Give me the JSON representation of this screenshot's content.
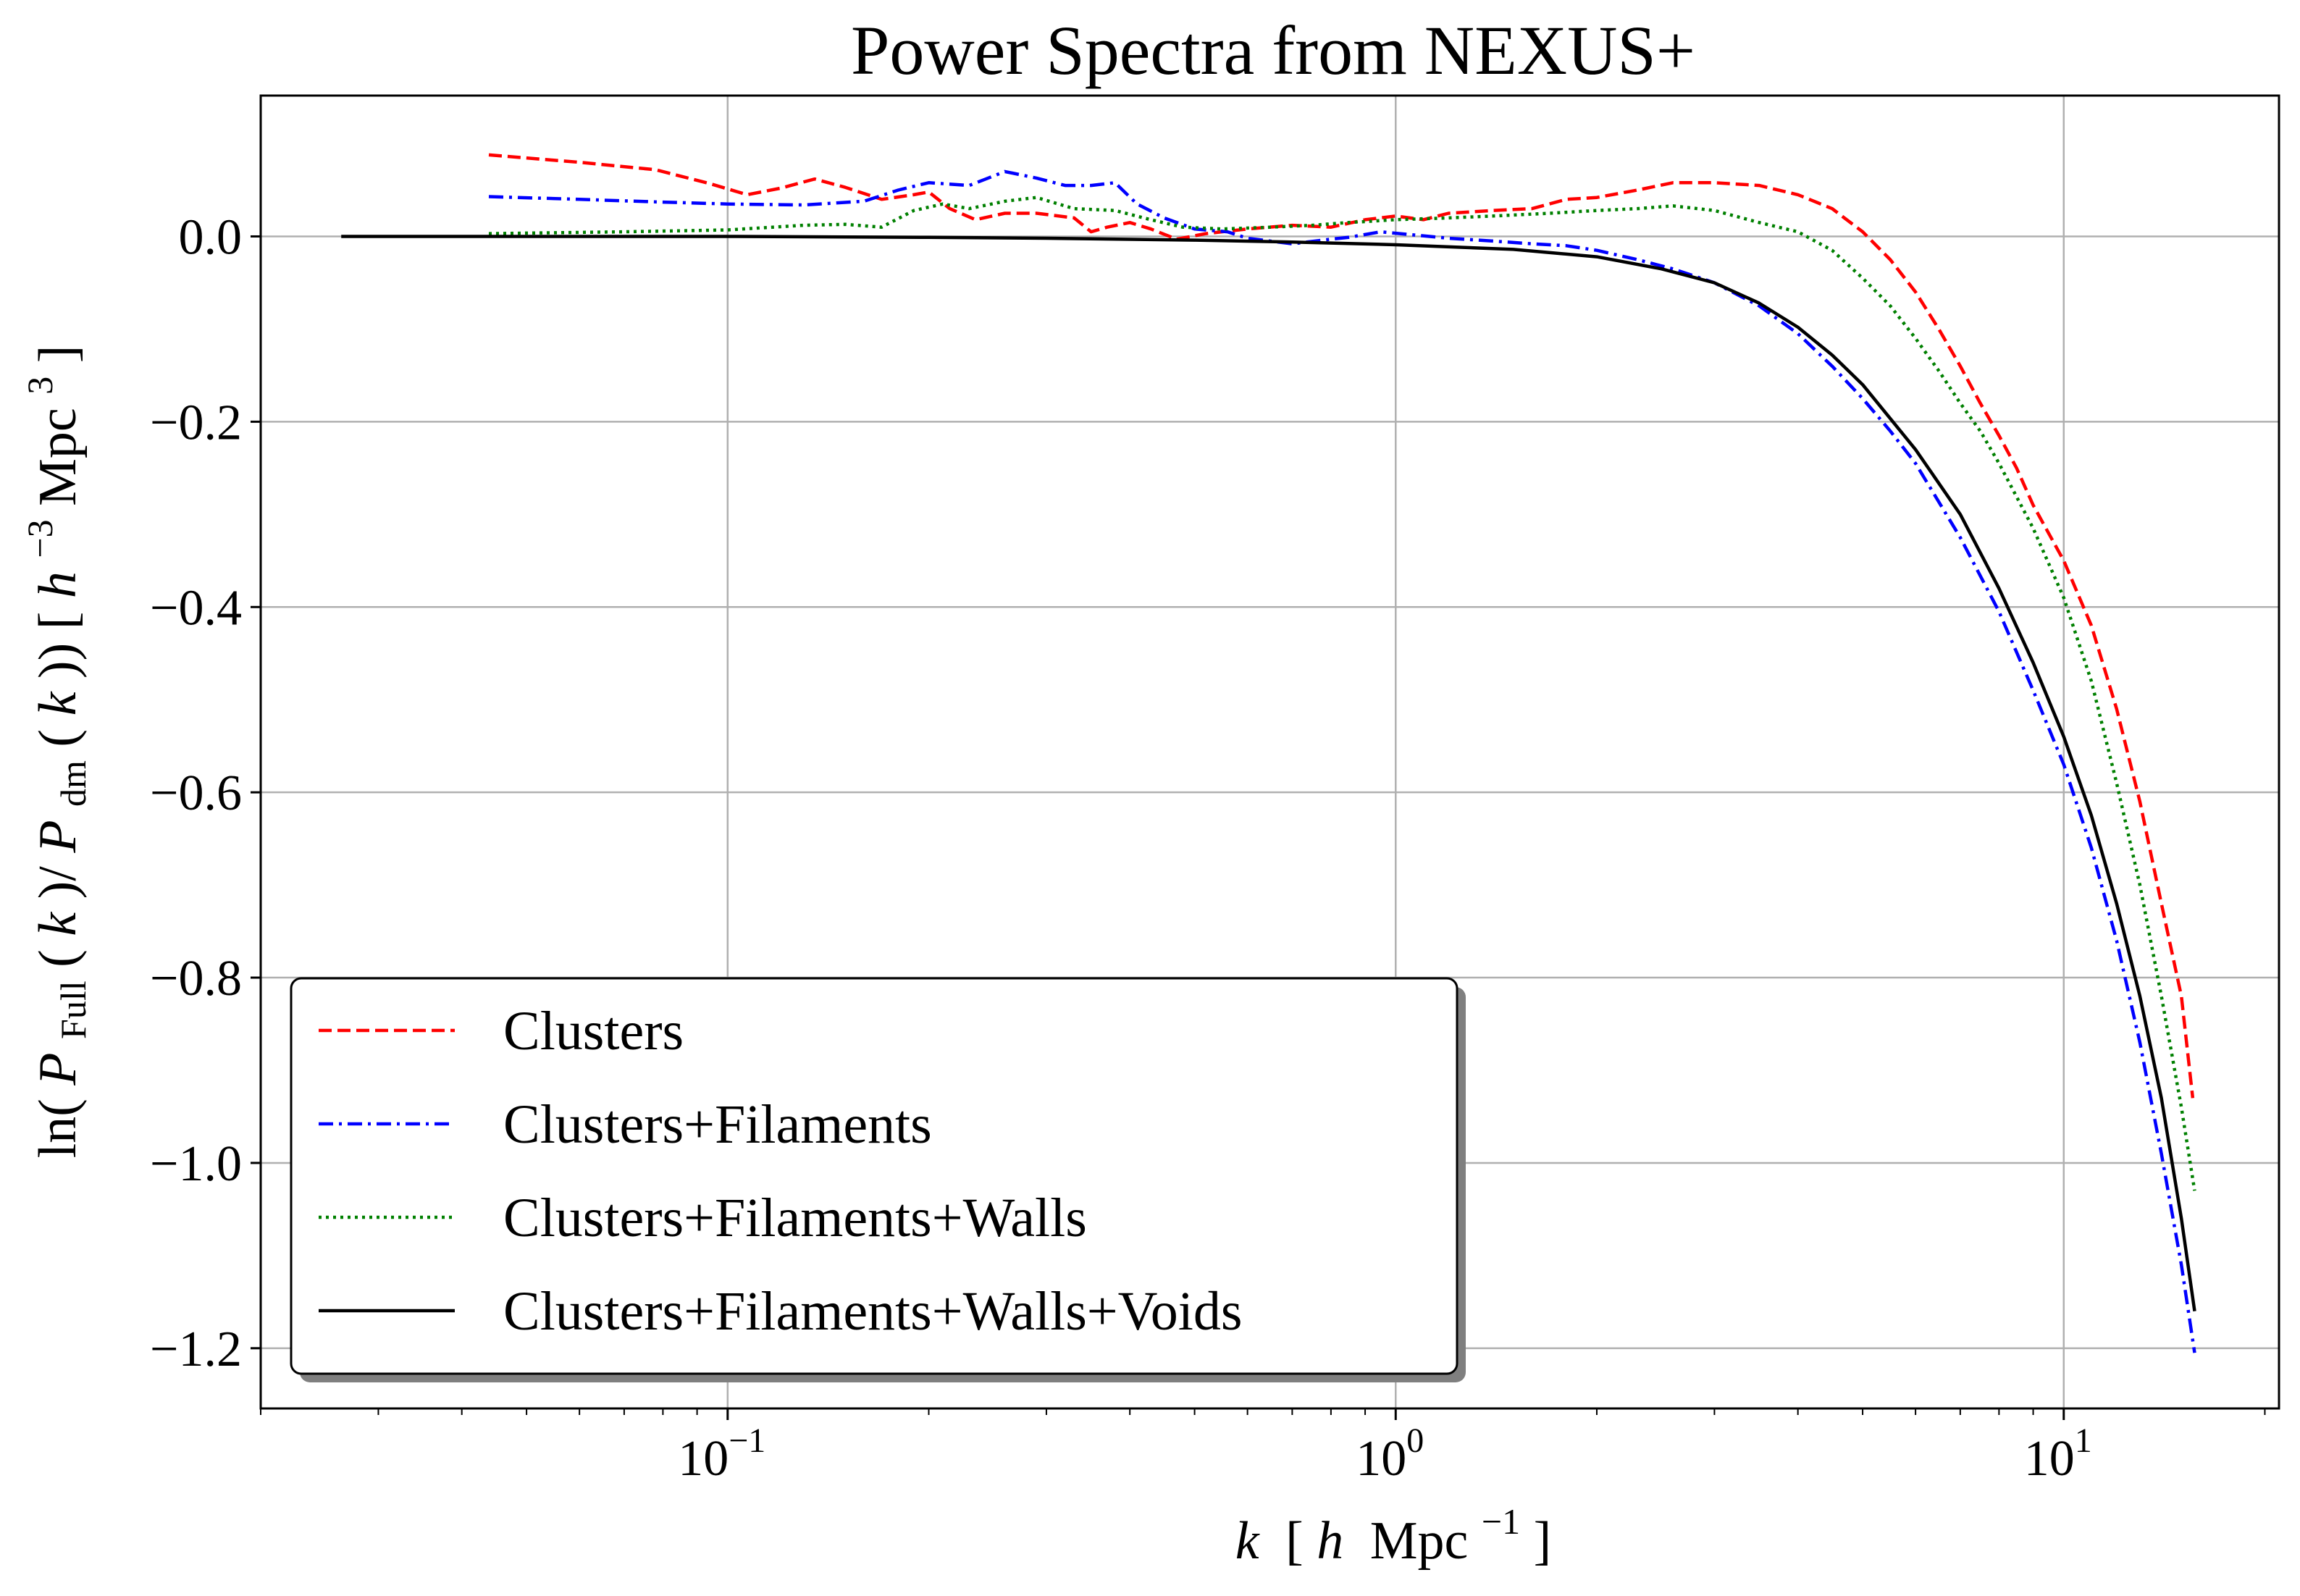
{
  "chart_data": {
    "type": "line",
    "title": "Power Spectra from NEXUS+",
    "xlabel": {
      "k": "k",
      "bracket_open": "[",
      "h": "h",
      "unit": "Mpc",
      "exp": "−1",
      "bracket_close": "]"
    },
    "ylabel": {
      "ln": "ln(",
      "P1": "P",
      "sub1": "Full",
      "mid1": "(",
      "k1": "k",
      "mid2": ")/",
      "P2": "P",
      "sub2": "dm",
      "mid3": "(",
      "k2": "k",
      "mid4": ")) [",
      "h": "h",
      "exp1": "−3",
      "unit": "Mpc",
      "exp2": "3",
      "close": "]"
    },
    "xscale": "log",
    "xlim": [
      0.02,
      21
    ],
    "ylim": [
      -1.265,
      0.152
    ],
    "grid": true,
    "legend_position": "lower-left",
    "x_ticks": [
      {
        "value": 0.1,
        "base": "10",
        "exp": "−1"
      },
      {
        "value": 1,
        "base": "10",
        "exp": "0"
      },
      {
        "value": 10,
        "base": "10",
        "exp": "1"
      }
    ],
    "y_ticks": [
      {
        "value": 0.0,
        "label": "0.0"
      },
      {
        "value": -0.2,
        "label": "−0.2"
      },
      {
        "value": -0.4,
        "label": "−0.4"
      },
      {
        "value": -0.6,
        "label": "−0.6"
      },
      {
        "value": -0.8,
        "label": "−0.8"
      },
      {
        "value": -1.0,
        "label": "−1.0"
      },
      {
        "value": -1.2,
        "label": "−1.2"
      }
    ],
    "series": [
      {
        "name": "Clusters",
        "color": "#ff0000",
        "style": "dashed",
        "points": [
          [
            0.0439,
            0.088
          ],
          [
            0.06,
            0.08
          ],
          [
            0.078,
            0.072
          ],
          [
            0.094,
            0.057
          ],
          [
            0.107,
            0.045
          ],
          [
            0.12,
            0.052
          ],
          [
            0.135,
            0.062
          ],
          [
            0.15,
            0.053
          ],
          [
            0.17,
            0.04
          ],
          [
            0.19,
            0.045
          ],
          [
            0.2,
            0.048
          ],
          [
            0.215,
            0.03
          ],
          [
            0.235,
            0.018
          ],
          [
            0.26,
            0.025
          ],
          [
            0.29,
            0.025
          ],
          [
            0.33,
            0.02
          ],
          [
            0.35,
            0.005
          ],
          [
            0.37,
            0.01
          ],
          [
            0.4,
            0.015
          ],
          [
            0.43,
            0.008
          ],
          [
            0.47,
            -0.003
          ],
          [
            0.52,
            0.003
          ],
          [
            0.6,
            0.008
          ],
          [
            0.7,
            0.012
          ],
          [
            0.8,
            0.01
          ],
          [
            0.9,
            0.018
          ],
          [
            1.0,
            0.022
          ],
          [
            1.1,
            0.018
          ],
          [
            1.2,
            0.025
          ],
          [
            1.4,
            0.028
          ],
          [
            1.6,
            0.03
          ],
          [
            1.8,
            0.04
          ],
          [
            2.0,
            0.042
          ],
          [
            2.3,
            0.05
          ],
          [
            2.6,
            0.058
          ],
          [
            3.0,
            0.058
          ],
          [
            3.5,
            0.055
          ],
          [
            4.0,
            0.045
          ],
          [
            4.5,
            0.03
          ],
          [
            5.0,
            0.005
          ],
          [
            5.5,
            -0.025
          ],
          [
            6.0,
            -0.06
          ],
          [
            6.5,
            -0.1
          ],
          [
            7.0,
            -0.14
          ],
          [
            7.5,
            -0.18
          ],
          [
            8.0,
            -0.215
          ],
          [
            8.5,
            -0.25
          ],
          [
            9.0,
            -0.29
          ],
          [
            10.0,
            -0.35
          ],
          [
            11.0,
            -0.42
          ],
          [
            12.0,
            -0.51
          ],
          [
            13.0,
            -0.61
          ],
          [
            14.0,
            -0.72
          ],
          [
            15.0,
            -0.82
          ],
          [
            15.6,
            -0.93
          ]
        ]
      },
      {
        "name": "Clusters+Filaments",
        "color": "#0000ff",
        "style": "dashdot",
        "points": [
          [
            0.0439,
            0.043
          ],
          [
            0.06,
            0.04
          ],
          [
            0.08,
            0.037
          ],
          [
            0.1,
            0.035
          ],
          [
            0.13,
            0.034
          ],
          [
            0.16,
            0.038
          ],
          [
            0.18,
            0.05
          ],
          [
            0.2,
            0.058
          ],
          [
            0.23,
            0.055
          ],
          [
            0.26,
            0.07
          ],
          [
            0.29,
            0.063
          ],
          [
            0.32,
            0.055
          ],
          [
            0.35,
            0.055
          ],
          [
            0.38,
            0.058
          ],
          [
            0.41,
            0.035
          ],
          [
            0.45,
            0.02
          ],
          [
            0.5,
            0.008
          ],
          [
            0.56,
            0.005
          ],
          [
            0.6,
            -0.002
          ],
          [
            0.7,
            -0.008
          ],
          [
            0.8,
            -0.003
          ],
          [
            0.85,
            -0.001
          ],
          [
            0.95,
            0.005
          ],
          [
            1.05,
            0.002
          ],
          [
            1.2,
            -0.002
          ],
          [
            1.4,
            -0.005
          ],
          [
            1.6,
            -0.008
          ],
          [
            1.8,
            -0.01
          ],
          [
            2.0,
            -0.015
          ],
          [
            2.3,
            -0.025
          ],
          [
            2.6,
            -0.035
          ],
          [
            3.0,
            -0.05
          ],
          [
            3.5,
            -0.075
          ],
          [
            4.0,
            -0.105
          ],
          [
            4.5,
            -0.14
          ],
          [
            5.0,
            -0.175
          ],
          [
            5.5,
            -0.21
          ],
          [
            6.0,
            -0.245
          ],
          [
            7.0,
            -0.325
          ],
          [
            8.0,
            -0.405
          ],
          [
            9.0,
            -0.49
          ],
          [
            10.0,
            -0.57
          ],
          [
            11.0,
            -0.66
          ],
          [
            12.0,
            -0.76
          ],
          [
            13.0,
            -0.87
          ],
          [
            14.0,
            -0.99
          ],
          [
            15.0,
            -1.11
          ],
          [
            15.7,
            -1.205
          ]
        ]
      },
      {
        "name": "Clusters+Filaments+Walls",
        "color": "#008000",
        "style": "dotted",
        "points": [
          [
            0.0439,
            0.003
          ],
          [
            0.07,
            0.005
          ],
          [
            0.1,
            0.007
          ],
          [
            0.13,
            0.012
          ],
          [
            0.15,
            0.013
          ],
          [
            0.17,
            0.01
          ],
          [
            0.19,
            0.028
          ],
          [
            0.21,
            0.035
          ],
          [
            0.23,
            0.03
          ],
          [
            0.26,
            0.038
          ],
          [
            0.29,
            0.042
          ],
          [
            0.33,
            0.03
          ],
          [
            0.38,
            0.028
          ],
          [
            0.43,
            0.018
          ],
          [
            0.48,
            0.01
          ],
          [
            0.55,
            0.008
          ],
          [
            0.65,
            0.01
          ],
          [
            0.75,
            0.012
          ],
          [
            0.85,
            0.015
          ],
          [
            1.0,
            0.018
          ],
          [
            1.2,
            0.02
          ],
          [
            1.4,
            0.022
          ],
          [
            1.7,
            0.025
          ],
          [
            2.0,
            0.028
          ],
          [
            2.3,
            0.03
          ],
          [
            2.6,
            0.033
          ],
          [
            3.0,
            0.028
          ],
          [
            3.5,
            0.015
          ],
          [
            4.0,
            0.005
          ],
          [
            4.5,
            -0.015
          ],
          [
            5.0,
            -0.045
          ],
          [
            5.5,
            -0.075
          ],
          [
            6.0,
            -0.11
          ],
          [
            6.5,
            -0.145
          ],
          [
            7.0,
            -0.18
          ],
          [
            7.5,
            -0.21
          ],
          [
            8.0,
            -0.245
          ],
          [
            9.0,
            -0.315
          ],
          [
            10.0,
            -0.39
          ],
          [
            11.0,
            -0.48
          ],
          [
            12.0,
            -0.59
          ],
          [
            13.0,
            -0.7
          ],
          [
            14.0,
            -0.82
          ],
          [
            15.0,
            -0.94
          ],
          [
            15.7,
            -1.03
          ]
        ]
      },
      {
        "name": "Clusters+Filaments+Walls+Voids",
        "color": "#000000",
        "style": "solid",
        "points": [
          [
            0.0264,
            0.0
          ],
          [
            0.05,
            0.0
          ],
          [
            0.1,
            0.0
          ],
          [
            0.2,
            -0.001
          ],
          [
            0.3,
            -0.002
          ],
          [
            0.5,
            -0.004
          ],
          [
            0.7,
            -0.006
          ],
          [
            1.0,
            -0.009
          ],
          [
            1.5,
            -0.014
          ],
          [
            2.0,
            -0.022
          ],
          [
            2.5,
            -0.035
          ],
          [
            3.0,
            -0.05
          ],
          [
            3.5,
            -0.072
          ],
          [
            4.0,
            -0.098
          ],
          [
            4.5,
            -0.128
          ],
          [
            5.0,
            -0.16
          ],
          [
            6.0,
            -0.23
          ],
          [
            7.0,
            -0.3
          ],
          [
            8.0,
            -0.38
          ],
          [
            9.0,
            -0.46
          ],
          [
            10.0,
            -0.54
          ],
          [
            11.0,
            -0.625
          ],
          [
            12.0,
            -0.72
          ],
          [
            13.0,
            -0.82
          ],
          [
            14.0,
            -0.93
          ],
          [
            15.0,
            -1.06
          ],
          [
            15.7,
            -1.16
          ]
        ]
      }
    ]
  }
}
